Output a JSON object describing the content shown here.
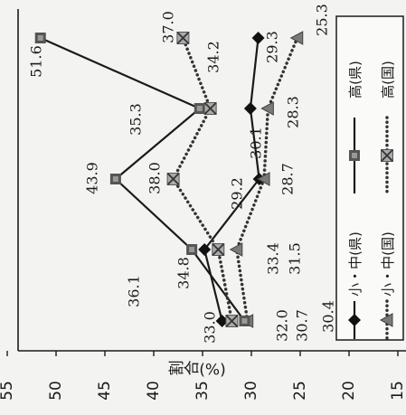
{
  "chart_data": {
    "type": "line",
    "orientation": "rotated-ccw",
    "ylabel": "割合(%)",
    "ylim": [
      15,
      55
    ],
    "yticks": [
      55,
      50,
      45,
      40,
      35,
      30,
      25,
      20,
      15
    ],
    "grid": false,
    "legend_position": "right",
    "series": [
      {
        "name": "小・中(県)",
        "marker": "diamond",
        "line": "solid",
        "values": [
          33.0,
          34.8,
          29.2,
          30.1,
          29.3
        ]
      },
      {
        "name": "小・中(国)",
        "marker": "triangle",
        "line": "dotted",
        "values": [
          30.4,
          31.5,
          28.7,
          28.3,
          25.3
        ]
      },
      {
        "name": "高(県)",
        "marker": "square",
        "line": "solid",
        "values": [
          30.7,
          36.1,
          43.9,
          35.3,
          51.6
        ]
      },
      {
        "name": "高(国)",
        "marker": "x-square",
        "line": "dotted",
        "values": [
          32.0,
          33.4,
          38.0,
          34.2,
          37.0
        ]
      }
    ],
    "colors": {
      "ink": "#1a1a1a",
      "background": "#f3f3f1"
    }
  }
}
